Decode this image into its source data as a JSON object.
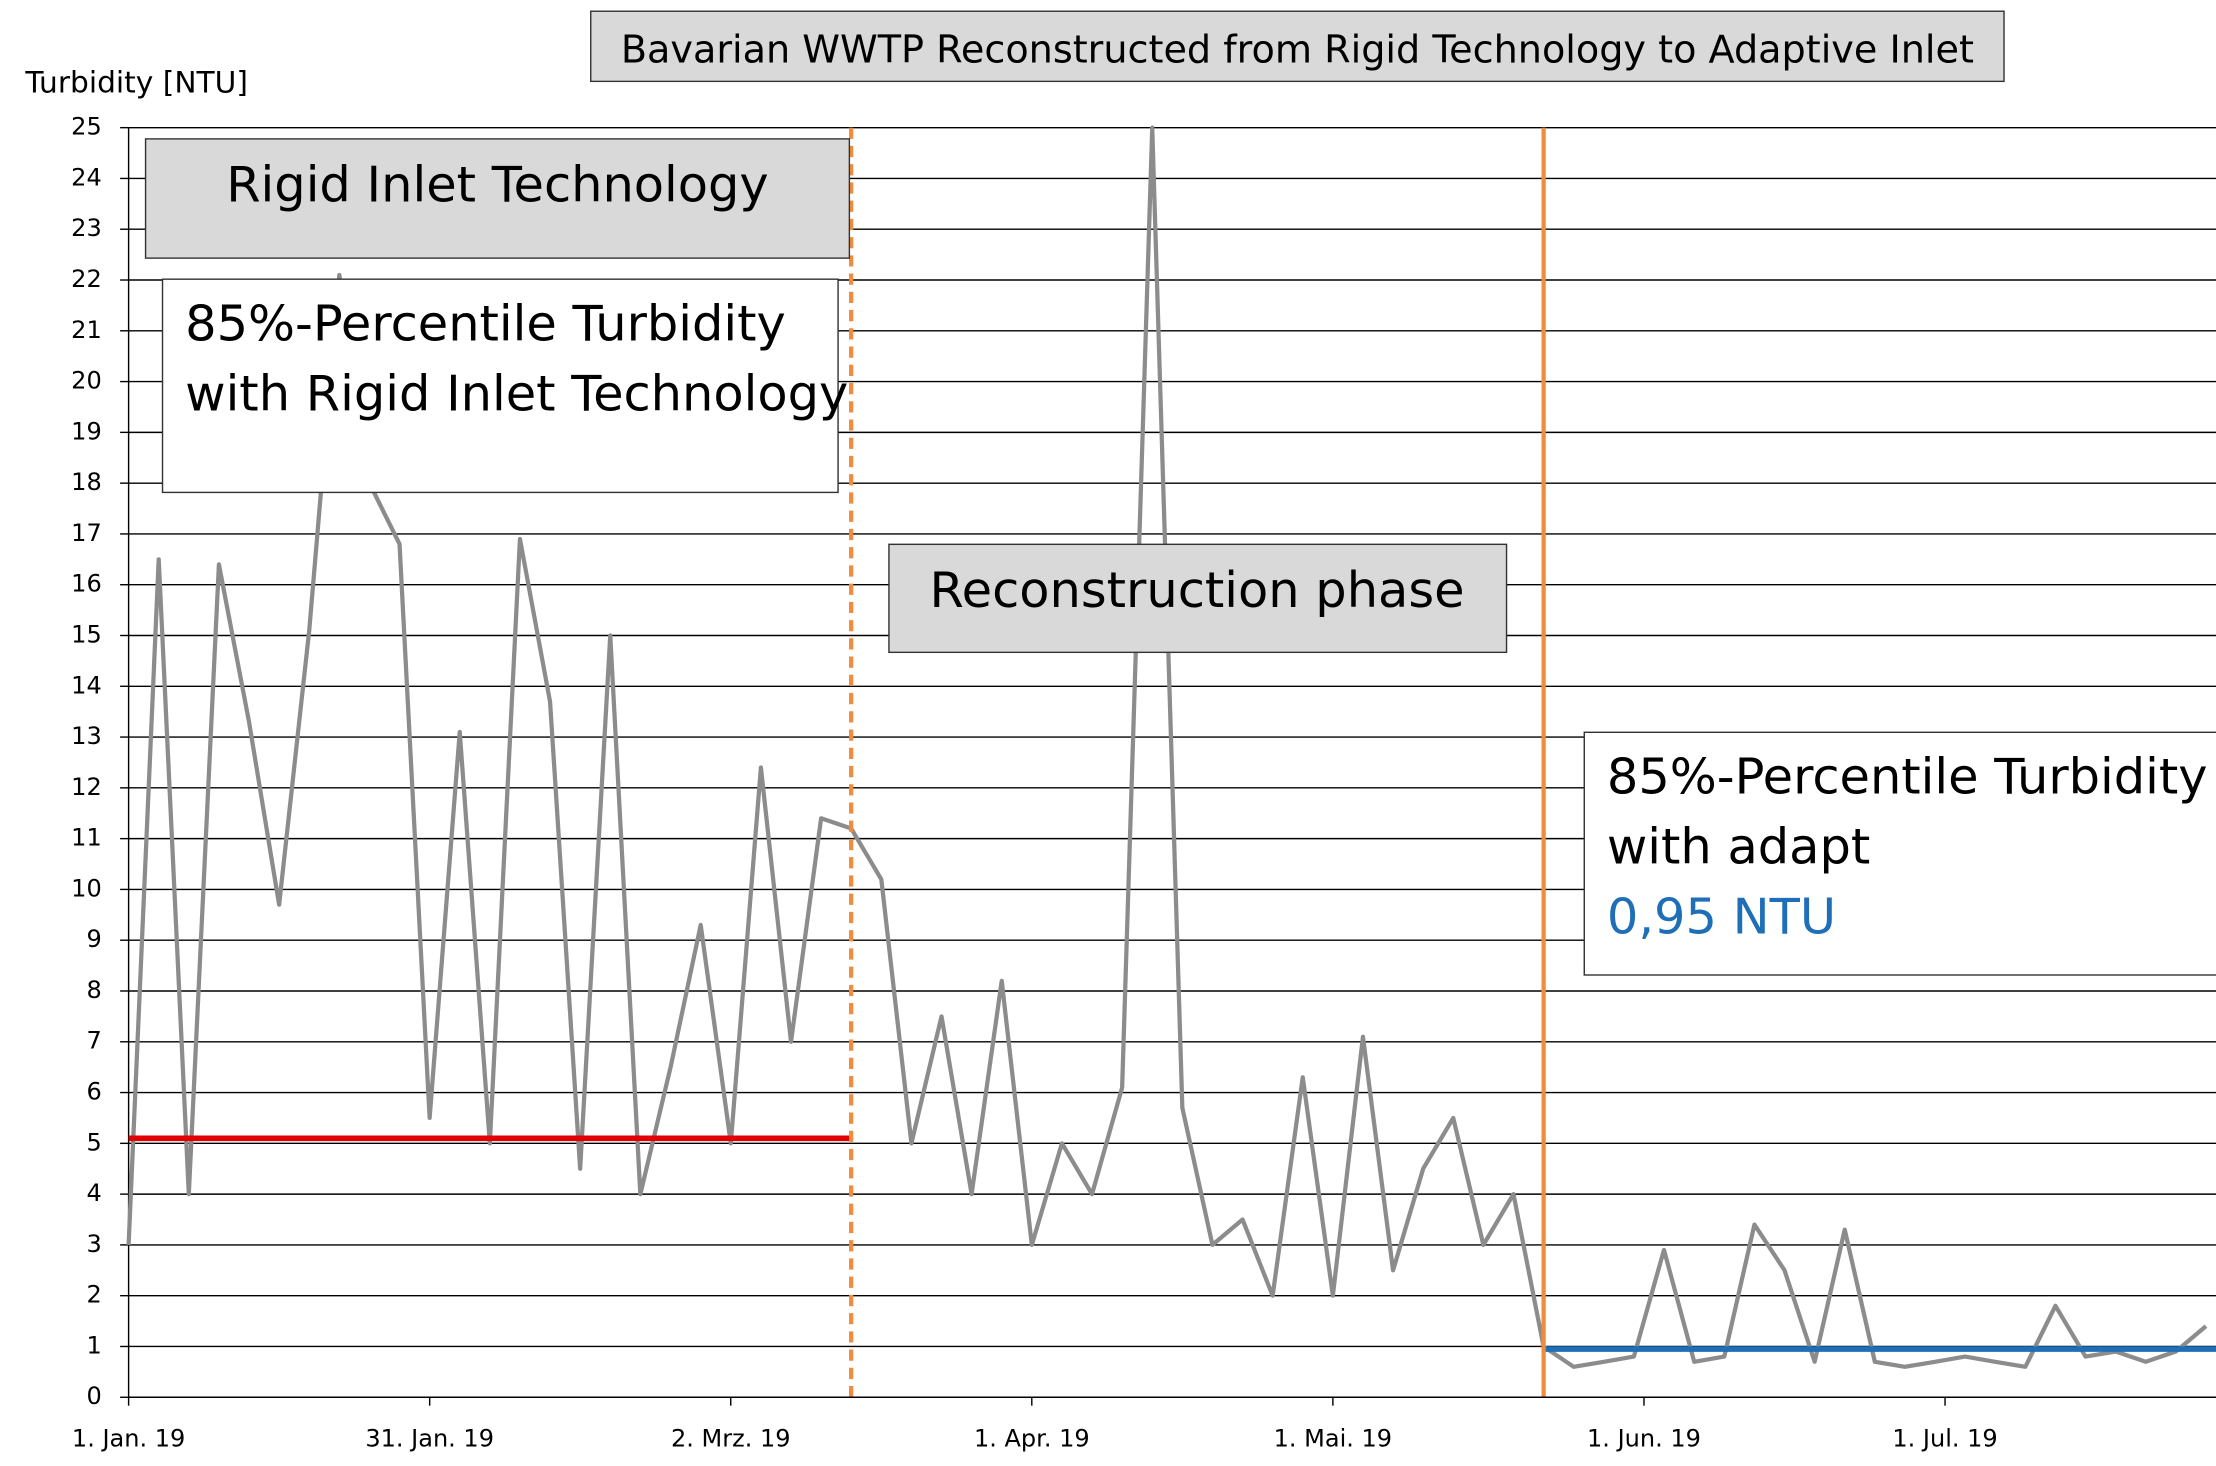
{
  "chart_data": {
    "type": "line",
    "title": "Bavarian WWTP Reconstructed from Rigid Technology to Adaptive Inlet",
    "y_label": "Turbidity [NTU]",
    "annotations": {
      "rigid": "Rigid Inlet Technology",
      "rigid_percentile": [
        "85%-Percentile Turbidity",
        "with Rigid Inlet Technology"
      ],
      "reconstruction": "Reconstruction phase",
      "adapt_percentile": [
        "85%-Percentile Turbidity",
        "with adapt",
        "0,95 NTU"
      ]
    },
    "x": [
      "2019-01-01",
      "2019-01-04",
      "2019-01-07",
      "2019-01-10",
      "2019-01-13",
      "2019-01-16",
      "2019-01-19",
      "2019-01-22",
      "2019-01-25",
      "2019-01-28",
      "2019-01-31",
      "2019-02-03",
      "2019-02-06",
      "2019-02-09",
      "2019-02-12",
      "2019-02-15",
      "2019-02-18",
      "2019-02-21",
      "2019-02-24",
      "2019-02-27",
      "2019-03-02",
      "2019-03-05",
      "2019-03-08",
      "2019-03-11",
      "2019-03-14",
      "2019-03-17",
      "2019-03-20",
      "2019-03-23",
      "2019-03-26",
      "2019-03-29",
      "2019-04-01",
      "2019-04-04",
      "2019-04-07",
      "2019-04-10",
      "2019-04-13",
      "2019-04-16",
      "2019-04-19",
      "2019-04-22",
      "2019-04-25",
      "2019-04-28",
      "2019-05-01",
      "2019-05-04",
      "2019-05-07",
      "2019-05-10",
      "2019-05-13",
      "2019-05-16",
      "2019-05-19",
      "2019-05-22",
      "2019-05-25",
      "2019-05-28",
      "2019-05-31",
      "2019-06-03",
      "2019-06-06",
      "2019-06-09",
      "2019-06-12",
      "2019-06-15",
      "2019-06-18",
      "2019-06-21",
      "2019-06-24",
      "2019-06-27",
      "2019-06-30",
      "2019-07-03",
      "2019-07-06",
      "2019-07-09",
      "2019-07-12",
      "2019-07-15",
      "2019-07-18",
      "2019-07-21",
      "2019-07-24",
      "2019-07-27"
    ],
    "series": [
      {
        "name": "Turbidity",
        "color": "#8c8c8c",
        "values": [
          3,
          16.5,
          4,
          16.4,
          13.3,
          9.7,
          15.1,
          22.1,
          18,
          16.8,
          5.5,
          13.1,
          5,
          16.9,
          13.7,
          4.5,
          15,
          4,
          6.5,
          9.3,
          5,
          12.4,
          7,
          11.4,
          11.2,
          10.2,
          5,
          7.5,
          4,
          8.2,
          3,
          5,
          4,
          6.1,
          25,
          5.7,
          3,
          3.5,
          2,
          6.3,
          2,
          7.1,
          2.5,
          4.5,
          5.5,
          3,
          4,
          1,
          0.6,
          0.7,
          0.8,
          2.9,
          0.7,
          0.8,
          3.4,
          2.5,
          0.7,
          3.3,
          0.7,
          0.6,
          0.7,
          0.8,
          0.7,
          0.6,
          1.8,
          0.8,
          0.9,
          0.7,
          0.9,
          1.4
        ]
      }
    ],
    "reference_lines": [
      {
        "start": "2019-01-01",
        "end": "2019-03-14",
        "value": 5.1,
        "color": "#e00000"
      },
      {
        "start": "2019-05-22",
        "end": "2019-07-28",
        "value": 0.95,
        "color": "#1f6fb8"
      }
    ],
    "markers": [
      {
        "x": "2019-03-14",
        "color": "#f08c3c",
        "style": "dashed"
      },
      {
        "x": "2019-05-22",
        "color": "#f08c3c",
        "style": "solid"
      }
    ],
    "xlim": [
      "2019-01-01",
      "2019-07-28"
    ],
    "xticks": [
      {
        "value": "2019-01-01",
        "label": "1. Jan. 19"
      },
      {
        "value": "2019-01-31",
        "label": "31. Jan. 19"
      },
      {
        "value": "2019-03-02",
        "label": "2. Mrz. 19"
      },
      {
        "value": "2019-04-01",
        "label": "1. Apr. 19"
      },
      {
        "value": "2019-05-01",
        "label": "1. Mai. 19"
      },
      {
        "value": "2019-06-01",
        "label": "1. Jun. 19"
      },
      {
        "value": "2019-07-01",
        "label": "1. Jul. 19"
      }
    ],
    "ylim": [
      0,
      25
    ],
    "yticks": [
      0,
      1,
      2,
      3,
      4,
      5,
      6,
      7,
      8,
      9,
      10,
      11,
      12,
      13,
      14,
      15,
      16,
      17,
      18,
      19,
      20,
      21,
      22,
      23,
      24,
      25
    ],
    "grid": true
  }
}
